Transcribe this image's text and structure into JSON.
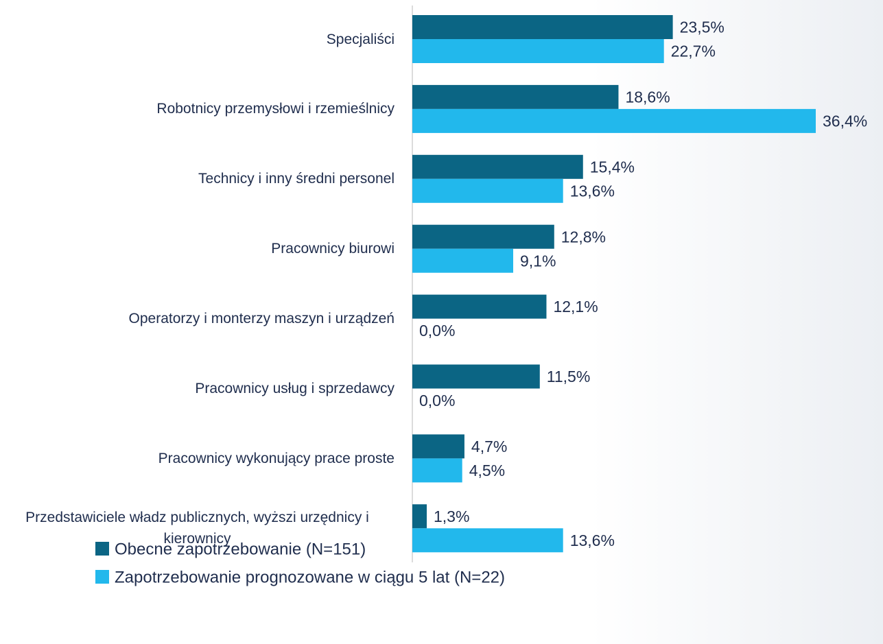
{
  "chart_data": {
    "type": "bar",
    "orientation": "horizontal",
    "categories": [
      "Specjaliści",
      "Robotnicy przemysłowi i rzemieślnicy",
      "Technicy i inny średni personel",
      "Pracownicy biurowi",
      "Operatorzy i monterzy maszyn i urządzeń",
      "Pracownicy usług i sprzedawcy",
      "Pracownicy wykonujący prace proste",
      "Przedstawiciele władz publicznych, wyższi urzędnicy i kierownicy"
    ],
    "series": [
      {
        "name": "Obecne zapotrzebowanie (N=151)",
        "color": "#0b6584",
        "values": [
          23.5,
          18.6,
          15.4,
          12.8,
          12.1,
          11.5,
          4.7,
          1.3
        ],
        "value_labels": [
          "23,5%",
          "18,6%",
          "15,4%",
          "12,8%",
          "12,1%",
          "11,5%",
          "4,7%",
          "1,3%"
        ]
      },
      {
        "name": "Zapotrzebowanie prognozowane w ciągu 5 lat (N=22)",
        "color": "#22b8ec",
        "values": [
          22.7,
          36.4,
          13.6,
          9.1,
          0.0,
          0.0,
          4.5,
          13.6
        ],
        "value_labels": [
          "22,7%",
          "36,4%",
          "13,6%",
          "9,1%",
          "0,0%",
          "0,0%",
          "4,5%",
          "13,6%"
        ]
      }
    ],
    "legend": "bottom-left"
  }
}
